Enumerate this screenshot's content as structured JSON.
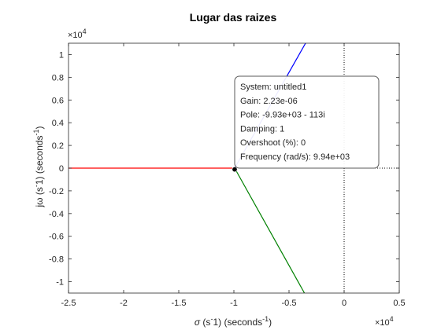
{
  "chart_data": {
    "type": "line",
    "title": "Lugar das raizes",
    "xlabel": {
      "sym": "σ",
      "mid": " (s",
      "sup1": "-",
      "mid2": "1) (seconds",
      "sup2": "-1",
      "end": ")"
    },
    "ylabel": {
      "sym": "jω",
      "mid": " (s",
      "sup1": "-",
      "mid2": "1) (seconds",
      "sup2": "-1",
      "end": ")"
    },
    "exponent": {
      "base": "×10",
      "power": "4"
    },
    "xlim": [
      -2.5,
      0.5
    ],
    "ylim": [
      -1.1,
      1.1
    ],
    "x_ticks": [
      -2.5,
      -2,
      -1.5,
      -1,
      -0.5,
      0,
      0.5
    ],
    "x_tick_labels": [
      "-2.5",
      "-2",
      "-1.5",
      "-1",
      "-0.5",
      "0",
      "0.5"
    ],
    "y_ticks": [
      -1,
      -0.8,
      -0.6,
      -0.4,
      -0.2,
      0,
      0.2,
      0.4,
      0.6,
      0.8,
      1
    ],
    "y_tick_labels": [
      "-1",
      "-0.8",
      "-0.6",
      "-0.4",
      "-0.2",
      "0",
      "0.2",
      "0.4",
      "0.6",
      "0.8",
      "1"
    ],
    "grid": false,
    "series": [
      {
        "color": "#0000ff",
        "points": [
          [
            -0.993,
            0
          ],
          [
            -0.35,
            1.1
          ]
        ]
      },
      {
        "color": "#ff0000",
        "points": [
          [
            -2.5,
            0
          ],
          [
            -0.993,
            0
          ]
        ]
      },
      {
        "color": "#008000",
        "points": [
          [
            -0.993,
            0
          ],
          [
            -0.36,
            -1.1
          ]
        ]
      }
    ],
    "reference_lines": {
      "vertical_x": 0,
      "horizontal_y": 0,
      "style": "dotted",
      "color": "#000000"
    },
    "marker": {
      "x": -0.993,
      "y": -0.0113,
      "color": "#000000"
    },
    "datatip": {
      "lines": [
        "System: untitled1",
        "Gain: 2.23e-06",
        "Pole: -9.93e+03 - 113i",
        "Damping: 1",
        "Overshoot (%): 0",
        "Frequency (rad/s): 9.94e+03"
      ]
    }
  }
}
